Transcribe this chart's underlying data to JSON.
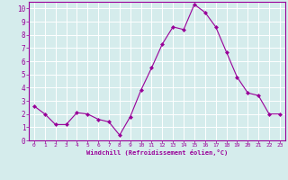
{
  "x": [
    0,
    1,
    2,
    3,
    4,
    5,
    6,
    7,
    8,
    9,
    10,
    11,
    12,
    13,
    14,
    15,
    16,
    17,
    18,
    19,
    20,
    21,
    22,
    23
  ],
  "y": [
    2.6,
    2.0,
    1.2,
    1.2,
    2.1,
    2.0,
    1.6,
    1.4,
    0.4,
    1.8,
    3.8,
    5.5,
    7.3,
    8.6,
    8.4,
    10.3,
    9.7,
    8.6,
    6.7,
    4.8,
    3.6,
    3.4,
    2.0,
    2.0
  ],
  "line_color": "#990099",
  "marker": "D",
  "marker_size": 2.0,
  "bg_color": "#d5ecec",
  "grid_color": "#ffffff",
  "xlabel": "Windchill (Refroidissement éolien,°C)",
  "xlabel_color": "#990099",
  "tick_color": "#990099",
  "ylim": [
    0,
    10.5
  ],
  "xlim": [
    -0.5,
    23.5
  ],
  "yticks": [
    0,
    1,
    2,
    3,
    4,
    5,
    6,
    7,
    8,
    9,
    10
  ],
  "xticks": [
    0,
    1,
    2,
    3,
    4,
    5,
    6,
    7,
    8,
    9,
    10,
    11,
    12,
    13,
    14,
    15,
    16,
    17,
    18,
    19,
    20,
    21,
    22,
    23
  ],
  "figsize": [
    3.2,
    2.0
  ],
  "dpi": 100
}
